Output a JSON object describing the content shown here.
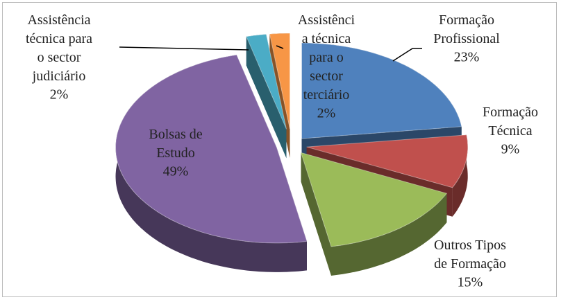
{
  "chart_data": {
    "type": "pie3d",
    "categories": [
      "Formação Profissional",
      "Formação Técnica",
      "Outros Tipos de Formação",
      "Bolsas de Estudo",
      "Assistência técnica para o sector judiciário",
      "Assistência técnica para o sector terciário"
    ],
    "values": [
      23,
      9,
      15,
      49,
      2,
      2
    ],
    "value_labels": [
      "23%",
      "9%",
      "15%",
      "49%",
      "2%",
      "2%"
    ],
    "colors": [
      "#4f81bd",
      "#c0504d",
      "#9bbb59",
      "#8064a2",
      "#4bacc6",
      "#f79646"
    ]
  }
}
